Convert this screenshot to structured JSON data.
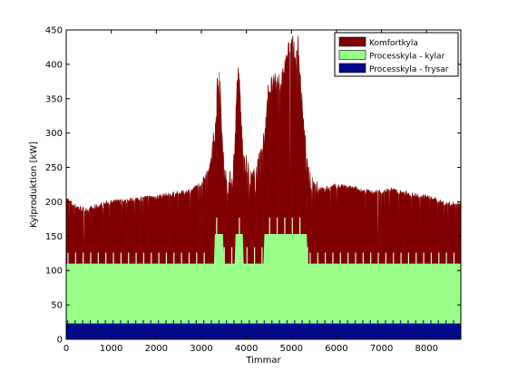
{
  "chart_data": {
    "type": "area",
    "stacked": true,
    "xlabel": "Timmar",
    "ylabel": "Kylproduktion [kW]",
    "xlim": [
      0,
      8760
    ],
    "ylim": [
      0,
      450
    ],
    "xticks": [
      0,
      1000,
      2000,
      3000,
      4000,
      5000,
      6000,
      7000,
      8000
    ],
    "yticks": [
      0,
      50,
      100,
      150,
      200,
      250,
      300,
      350,
      400,
      450
    ],
    "grid": false,
    "legend_position": "top-right",
    "series": [
      {
        "name": "Komfortkyla",
        "color": "#800000",
        "top_profile": {
          "x": [
            0,
            200,
            400,
            600,
            800,
            1000,
            1400,
            1800,
            2200,
            2600,
            2800,
            3000,
            3200,
            3300,
            3350,
            3400,
            3450,
            3500,
            3550,
            3600,
            3700,
            3750,
            3800,
            3850,
            3900,
            3950,
            4000,
            4100,
            4200,
            4300,
            4400,
            4450,
            4500,
            4600,
            4700,
            4800,
            4850,
            4900,
            4950,
            5000,
            5050,
            5100,
            5150,
            5200,
            5250,
            5300,
            5350,
            5400,
            5500,
            5700,
            6000,
            6400,
            6800,
            7200,
            7600,
            8000,
            8400,
            8760
          ],
          "y": [
            203,
            193,
            187,
            190,
            195,
            198,
            201,
            205,
            208,
            212,
            216,
            226,
            252,
            300,
            365,
            382,
            305,
            248,
            228,
            222,
            232,
            290,
            382,
            368,
            290,
            265,
            250,
            228,
            232,
            255,
            290,
            342,
            362,
            365,
            370,
            372,
            395,
            402,
            420,
            440,
            415,
            395,
            428,
            372,
            322,
            282,
            245,
            225,
            222,
            216,
            222,
            218,
            212,
            216,
            210,
            206,
            196,
            195
          ]
        }
      },
      {
        "name": "Processkyla - kylar",
        "color": "#99ff88",
        "level": 110,
        "peak_level": 153
      },
      {
        "name": "Processkyla - frysar",
        "color": "#000a8a",
        "level": 23,
        "spike_level": 28
      }
    ]
  }
}
